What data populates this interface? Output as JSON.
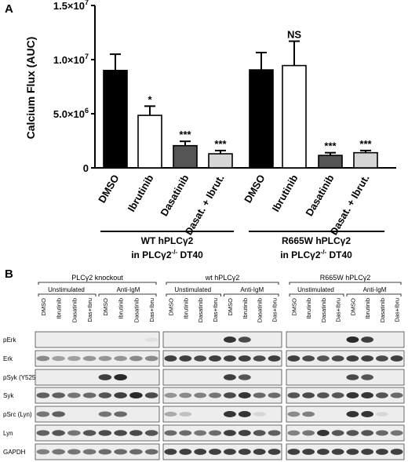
{
  "panel_a": {
    "letter": "A",
    "chart_data": {
      "type": "bar",
      "ylabel": "Calcium Flux (AUC)",
      "ylim": [
        0,
        15000000
      ],
      "y_tick_labels": [
        "0",
        "5.0×10",
        "1.0×10",
        "1.5×10"
      ],
      "y_tick_exponents": [
        "",
        "6",
        "7",
        "7"
      ],
      "y_tick_values": [
        0,
        5000000,
        10000000,
        15000000
      ],
      "categories": [
        "DMSO",
        "Ibrutinib",
        "Dasatinib",
        "Dasat. + Ibrut.",
        "DMSO",
        "Ibrutinib",
        "Dasatinib",
        "Dasat. + Ibrut."
      ],
      "values": [
        9000000,
        4850000,
        2050000,
        1300000,
        9050000,
        9450000,
        1150000,
        1400000
      ],
      "errors": [
        1500000,
        850000,
        400000,
        300000,
        1600000,
        2250000,
        250000,
        200000
      ],
      "bar_colors": [
        "#000000",
        "#ffffff",
        "#555555",
        "#d6d6d6",
        "#000000",
        "#ffffff",
        "#555555",
        "#d6d6d6"
      ],
      "significance": [
        "",
        "*",
        "***",
        "***",
        "",
        "NS",
        "***",
        "***"
      ],
      "groups": [
        {
          "line1": "WT hPLCγ2",
          "line2_a": "in PLCγ2",
          "line2_sup": "-/-",
          "line2_b": " DT40"
        },
        {
          "line1": "R665W hPLCγ2",
          "line2_a": "in PLCγ2",
          "line2_sup": "-/-",
          "line2_b": " DT40"
        }
      ]
    }
  },
  "panel_b": {
    "letter": "B",
    "blot_groups": [
      {
        "title": "PLCγ2 knockout",
        "sub_left": "Unstimulated",
        "sub_right": "Anti-IgM",
        "lanes": [
          "DMSO",
          "Ibrutinib",
          "Dasatinib",
          "Das+Ibru",
          "DMSO",
          "Ibrutinib",
          "Dasatinib",
          "Das+Ibru"
        ]
      },
      {
        "title": "wt hPLCγ2",
        "sub_left": "Unstimulated",
        "sub_right": "Anti-IgM",
        "lanes": [
          "DMSO",
          "Ibrutinib",
          "Dasatinib",
          "Das+Ibru",
          "DMSO",
          "Ibrutinib",
          "Dasatinib",
          "Das+Ibru"
        ]
      },
      {
        "title": "R665W hPLCγ2",
        "sub_left": "Unstimulated",
        "sub_right": "Anti-IgM",
        "lanes": [
          "DMSO",
          "Ibrutinib",
          "Dasatinib",
          "Das+Ibru",
          "DMSO",
          "Ibrutinib",
          "Dasatinib",
          "Das+Ibru"
        ]
      }
    ],
    "rows": [
      "pErk",
      "Erk",
      "pSyk (Y525)",
      "Syk",
      "pSrc (Lyn)",
      "Lyn",
      "GAPDH"
    ],
    "intensities": [
      [
        [
          0,
          0,
          0,
          0,
          0,
          0,
          0,
          0.05
        ],
        [
          0,
          0,
          0,
          0,
          0.85,
          0.75,
          0,
          0
        ],
        [
          0,
          0,
          0,
          0,
          0.9,
          0.8,
          0,
          0
        ]
      ],
      [
        [
          0.45,
          0.35,
          0.35,
          0.4,
          0.4,
          0.4,
          0.45,
          0.45
        ],
        [
          0.8,
          0.8,
          0.75,
          0.8,
          0.8,
          0.8,
          0.75,
          0.8
        ],
        [
          0.8,
          0.75,
          0.7,
          0.75,
          0.8,
          0.8,
          0.75,
          0.8
        ]
      ],
      [
        [
          0,
          0,
          0,
          0,
          0.8,
          0.9,
          0,
          0
        ],
        [
          0,
          0,
          0,
          0,
          0.8,
          0.7,
          0,
          0
        ],
        [
          0,
          0,
          0,
          0,
          0.75,
          0.7,
          0,
          0
        ]
      ],
      [
        [
          0.65,
          0.65,
          0.55,
          0.6,
          0.7,
          0.8,
          0.9,
          0.75
        ],
        [
          0.4,
          0.45,
          0.5,
          0.55,
          0.75,
          0.85,
          0.6,
          0.6
        ],
        [
          0.7,
          0.75,
          0.7,
          0.7,
          0.85,
          0.85,
          0.7,
          0.6
        ]
      ],
      [
        [
          0.55,
          0.65,
          0,
          0,
          0.55,
          0.6,
          0,
          0
        ],
        [
          0.3,
          0.2,
          0,
          0,
          0.85,
          0.85,
          0.1,
          0
        ],
        [
          0.45,
          0.5,
          0,
          0,
          0.85,
          0.85,
          0.1,
          0
        ]
      ],
      [
        [
          0.65,
          0.7,
          0.55,
          0.7,
          0.75,
          0.75,
          0.75,
          0.7
        ],
        [
          0.6,
          0.6,
          0.55,
          0.6,
          0.8,
          0.8,
          0.7,
          0.65
        ],
        [
          0.5,
          0.55,
          0.85,
          0.7,
          0.7,
          0.7,
          0.6,
          0.55
        ]
      ],
      [
        [
          0.5,
          0.55,
          0.55,
          0.55,
          0.6,
          0.6,
          0.6,
          0.6
        ],
        [
          0.8,
          0.8,
          0.8,
          0.8,
          0.8,
          0.8,
          0.8,
          0.8
        ],
        [
          0.8,
          0.8,
          0.8,
          0.8,
          0.8,
          0.8,
          0.8,
          0.8
        ]
      ]
    ]
  }
}
